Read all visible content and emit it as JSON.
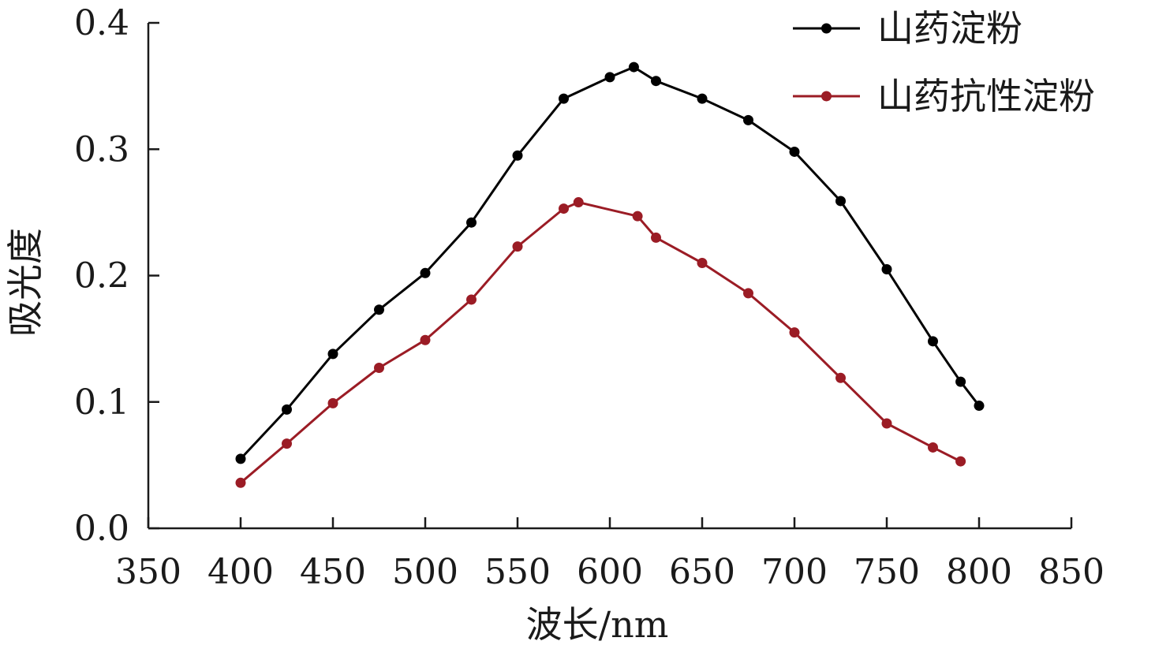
{
  "chart_data": {
    "type": "line",
    "title": "",
    "xlabel": "波长/nm",
    "ylabel": "吸光度",
    "xlim": [
      350,
      850
    ],
    "ylim": [
      0.0,
      0.4
    ],
    "x_ticks": [
      350,
      400,
      450,
      500,
      550,
      600,
      650,
      700,
      750,
      800,
      850
    ],
    "x_tick_labels": [
      "350",
      "400",
      "450",
      "500",
      "550",
      "600",
      "650",
      "700",
      "750",
      "800",
      "850"
    ],
    "y_ticks": [
      0.0,
      0.1,
      0.2,
      0.3,
      0.4
    ],
    "y_tick_labels": [
      "0.0",
      "0.1",
      "0.2",
      "0.3",
      "0.4"
    ],
    "grid": false,
    "legend_position": "top-right",
    "series": [
      {
        "name": "山药淀粉",
        "color": "#000000",
        "points": [
          [
            400,
            0.055
          ],
          [
            425,
            0.094
          ],
          [
            450,
            0.138
          ],
          [
            475,
            0.173
          ],
          [
            500,
            0.202
          ],
          [
            525,
            0.242
          ],
          [
            550,
            0.295
          ],
          [
            575,
            0.34
          ],
          [
            600,
            0.357
          ],
          [
            613,
            0.365
          ],
          [
            625,
            0.354
          ],
          [
            650,
            0.34
          ],
          [
            675,
            0.323
          ],
          [
            700,
            0.298
          ],
          [
            725,
            0.259
          ],
          [
            750,
            0.205
          ],
          [
            775,
            0.148
          ],
          [
            790,
            0.116
          ],
          [
            800,
            0.097
          ]
        ]
      },
      {
        "name": "山药抗性淀粉",
        "color": "#9b1c25",
        "points": [
          [
            400,
            0.036
          ],
          [
            425,
            0.067
          ],
          [
            450,
            0.099
          ],
          [
            475,
            0.127
          ],
          [
            500,
            0.149
          ],
          [
            525,
            0.181
          ],
          [
            550,
            0.223
          ],
          [
            575,
            0.253
          ],
          [
            583,
            0.258
          ],
          [
            615,
            0.247
          ],
          [
            625,
            0.23
          ],
          [
            650,
            0.21
          ],
          [
            675,
            0.186
          ],
          [
            700,
            0.155
          ],
          [
            725,
            0.119
          ],
          [
            750,
            0.083
          ],
          [
            775,
            0.064
          ],
          [
            790,
            0.053
          ]
        ]
      }
    ]
  }
}
